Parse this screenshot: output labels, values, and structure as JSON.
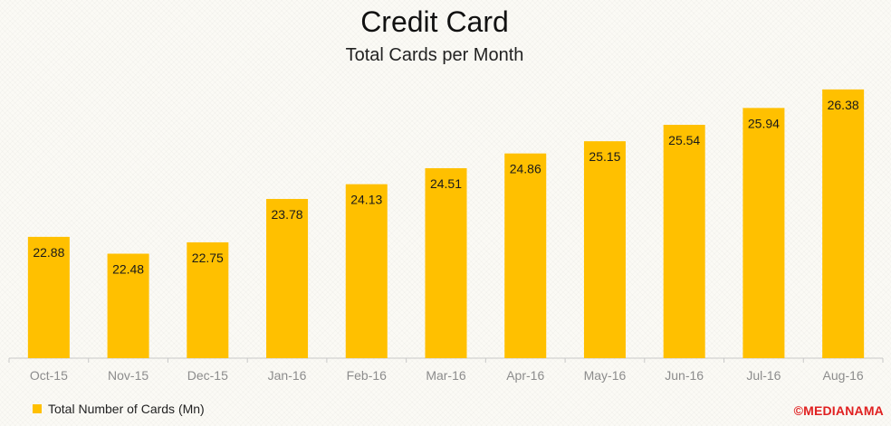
{
  "chart_data": {
    "type": "bar",
    "title": "Credit Card",
    "subtitle": "Total Cards per Month",
    "categories": [
      "Oct-15",
      "Nov-15",
      "Dec-15",
      "Jan-16",
      "Feb-16",
      "Mar-16",
      "Apr-16",
      "May-16",
      "Jun-16",
      "Jul-16",
      "Aug-16"
    ],
    "series": [
      {
        "name": "Total Number of Cards (Mn)",
        "values": [
          22.88,
          22.48,
          22.75,
          23.78,
          24.13,
          24.51,
          24.86,
          25.15,
          25.54,
          25.94,
          26.38
        ]
      }
    ],
    "data_labels": [
      "22.88",
      "22.48",
      "22.75",
      "23.78",
      "24.13",
      "24.51",
      "24.86",
      "25.15",
      "25.54",
      "25.94",
      "26.38"
    ],
    "ylim": [
      20.0,
      27.0
    ],
    "grid": false,
    "legend_position": "bottom-left",
    "bar_color": "#ffc000",
    "axis_color": "#c8c8c8",
    "tick_label_color": "#8c8c8c"
  },
  "watermark": "©MEDIANAMA"
}
